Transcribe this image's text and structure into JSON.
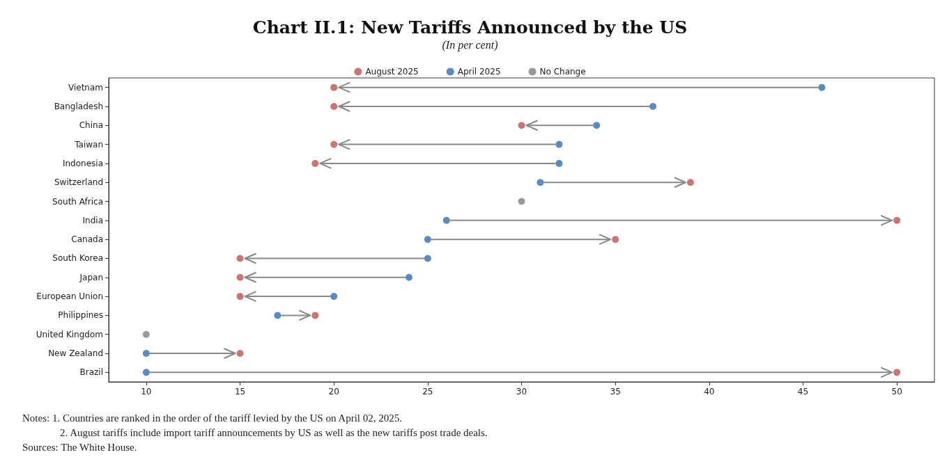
{
  "chart_data": {
    "type": "scatter",
    "title": "Chart II.1: New Tariffs Announced by the US",
    "subtitle": "(In per cent)",
    "categories": [
      "Vietnam",
      "Bangladesh",
      "China",
      "Taiwan",
      "Indonesia",
      "Switzerland",
      "South Africa",
      "India",
      "Canada",
      "South Korea",
      "Japan",
      "European Union",
      "Philippines",
      "United Kingdom",
      "New Zealand",
      "Brazil"
    ],
    "series": [
      {
        "name": "August 2025",
        "color": "#c0504d",
        "values": [
          20,
          20,
          30,
          20,
          19,
          39,
          null,
          50,
          35,
          15,
          15,
          15,
          19,
          null,
          15,
          50
        ]
      },
      {
        "name": "April 2025",
        "color": "#2e6db4",
        "values": [
          46,
          37,
          34,
          32,
          32,
          31,
          null,
          26,
          25,
          25,
          24,
          20,
          17,
          null,
          10,
          10
        ]
      },
      {
        "name": "No Change",
        "color": "#808080",
        "values": [
          null,
          null,
          null,
          null,
          null,
          null,
          30,
          null,
          null,
          null,
          null,
          null,
          null,
          10,
          null,
          null
        ]
      }
    ],
    "xlim": [
      8,
      52
    ],
    "xticks": [
      10,
      15,
      20,
      25,
      30,
      35,
      40,
      45,
      50
    ],
    "orientation": "horizontal",
    "marker": "circle",
    "grid": false,
    "legend": "top",
    "annotations": [
      "Notes: 1. Countries are ranked in the order of the tariff levied by the US on April 02, 2025.",
      "2. August tariffs include import tariff announcements by US as well as the new tariffs post trade deals.",
      "Sources: The White House."
    ]
  }
}
